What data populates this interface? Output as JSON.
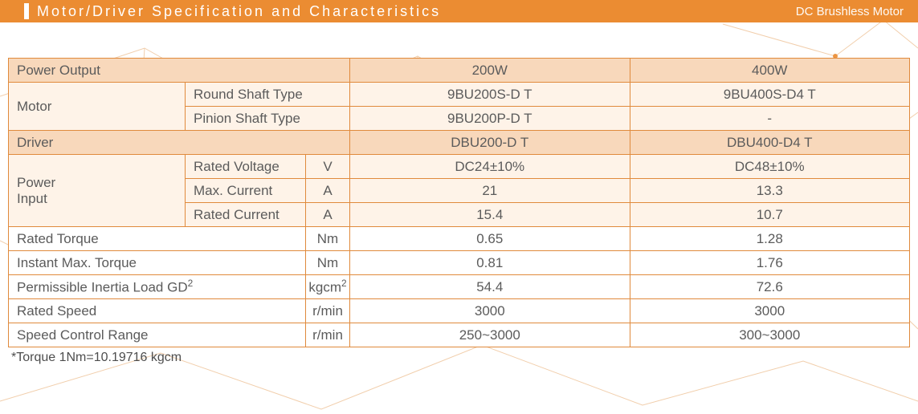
{
  "colors": {
    "accent": "#eb8c32",
    "band_dark": "#f8d8bb",
    "band_light": "#fef3e8",
    "text": "#5b5b5b",
    "decor_line": "#f0c9a3"
  },
  "header": {
    "title": "Motor/Driver Specification and Characteristics",
    "badge": "DC Brushless Motor"
  },
  "table": {
    "power_output": {
      "label": "Power Output",
      "a": "200W",
      "b": "400W"
    },
    "motor": {
      "label": "Motor",
      "round": {
        "label": "Round Shaft Type",
        "a": "9BU200S-D T",
        "b": "9BU400S-D4 T"
      },
      "pinion": {
        "label": "Pinion Shaft Type",
        "a": "9BU200P-D T",
        "b": "-"
      }
    },
    "driver": {
      "label": "Driver",
      "a": "DBU200-D T",
      "b": "DBU400-D4 T"
    },
    "power_input": {
      "label": "Power Input",
      "rated_voltage": {
        "label": "Rated Voltage",
        "unit": "V",
        "a": "DC24±10%",
        "b": "DC48±10%"
      },
      "max_current": {
        "label": "Max.   Current",
        "unit": "A",
        "a": "21",
        "b": "13.3"
      },
      "rated_current": {
        "label": "Rated Current",
        "unit": "A",
        "a": "15.4",
        "b": "10.7"
      }
    },
    "rated_torque": {
      "label": "Rated Torque",
      "unit": "Nm",
      "a": "0.65",
      "b": "1.28"
    },
    "instant_max_torque": {
      "label": "Instant Max. Torque",
      "unit": "Nm",
      "a": "0.81",
      "b": "1.76"
    },
    "inertia": {
      "label_html": "Permissible Inertia Load GD<sup>2</sup>",
      "unit_html": "kgcm<sup>2</sup>",
      "a": "54.4",
      "b": "72.6"
    },
    "rated_speed": {
      "label": "Rated Speed",
      "unit": "r/min",
      "a": "3000",
      "b": "3000"
    },
    "speed_range": {
      "label": "Speed Control Range",
      "unit": "r/min",
      "a": "250~3000",
      "b": "300~3000"
    }
  },
  "footnote": "*Torque 1Nm=10.19716 kgcm"
}
